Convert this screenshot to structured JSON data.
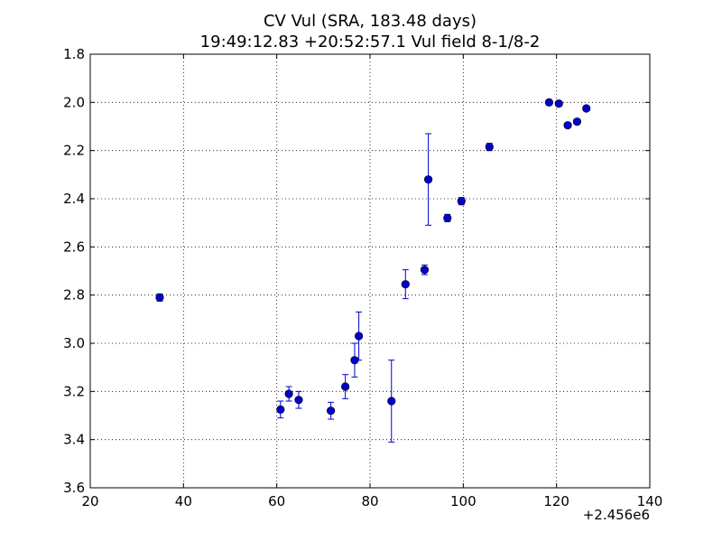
{
  "chart_data": {
    "type": "scatter",
    "title_line1": "CV Vul (SRA, 183.48 days)",
    "title_line2": "19:49:12.83 +20:52:57.1 Vul field 8-1/8-2",
    "xlabel": "",
    "ylabel": "",
    "x_offset_label": "+2.456e6",
    "xlim": [
      20,
      140
    ],
    "ylim": [
      3.6,
      1.8
    ],
    "y_inverted": true,
    "grid": true,
    "x_ticks": [
      "20",
      "40",
      "60",
      "80",
      "100",
      "120",
      "140"
    ],
    "y_ticks": [
      "1.8",
      "2.0",
      "2.2",
      "2.4",
      "2.6",
      "2.8",
      "3.0",
      "3.2",
      "3.4",
      "3.6"
    ],
    "x_tick_values": [
      20,
      40,
      60,
      80,
      100,
      120,
      140
    ],
    "y_tick_values": [
      1.8,
      2.0,
      2.2,
      2.4,
      2.6,
      2.8,
      3.0,
      3.2,
      3.4,
      3.6
    ],
    "color": "#0000cc",
    "points": [
      {
        "x": 34.9,
        "y": 2.81,
        "err": 0.015
      },
      {
        "x": 60.8,
        "y": 3.275,
        "err": 0.035
      },
      {
        "x": 62.6,
        "y": 3.21,
        "err": 0.03
      },
      {
        "x": 64.7,
        "y": 3.235,
        "err": 0.035
      },
      {
        "x": 71.6,
        "y": 3.28,
        "err": 0.035
      },
      {
        "x": 74.7,
        "y": 3.18,
        "err": 0.05
      },
      {
        "x": 76.7,
        "y": 3.07,
        "err": 0.07
      },
      {
        "x": 77.6,
        "y": 2.97,
        "err": 0.1
      },
      {
        "x": 84.6,
        "y": 3.24,
        "err": 0.17
      },
      {
        "x": 87.6,
        "y": 2.755,
        "err": 0.06
      },
      {
        "x": 91.7,
        "y": 2.695,
        "err": 0.02
      },
      {
        "x": 92.5,
        "y": 2.32,
        "err": 0.19
      },
      {
        "x": 96.6,
        "y": 2.48,
        "err": 0.015
      },
      {
        "x": 99.6,
        "y": 2.41,
        "err": 0.015
      },
      {
        "x": 105.6,
        "y": 2.185,
        "err": 0.015
      },
      {
        "x": 118.4,
        "y": 2.0,
        "err": 0.01
      },
      {
        "x": 120.5,
        "y": 2.005,
        "err": 0.01
      },
      {
        "x": 122.4,
        "y": 2.095,
        "err": 0.01
      },
      {
        "x": 124.4,
        "y": 2.08,
        "err": 0.01
      },
      {
        "x": 126.4,
        "y": 2.025,
        "err": 0.01
      }
    ]
  }
}
